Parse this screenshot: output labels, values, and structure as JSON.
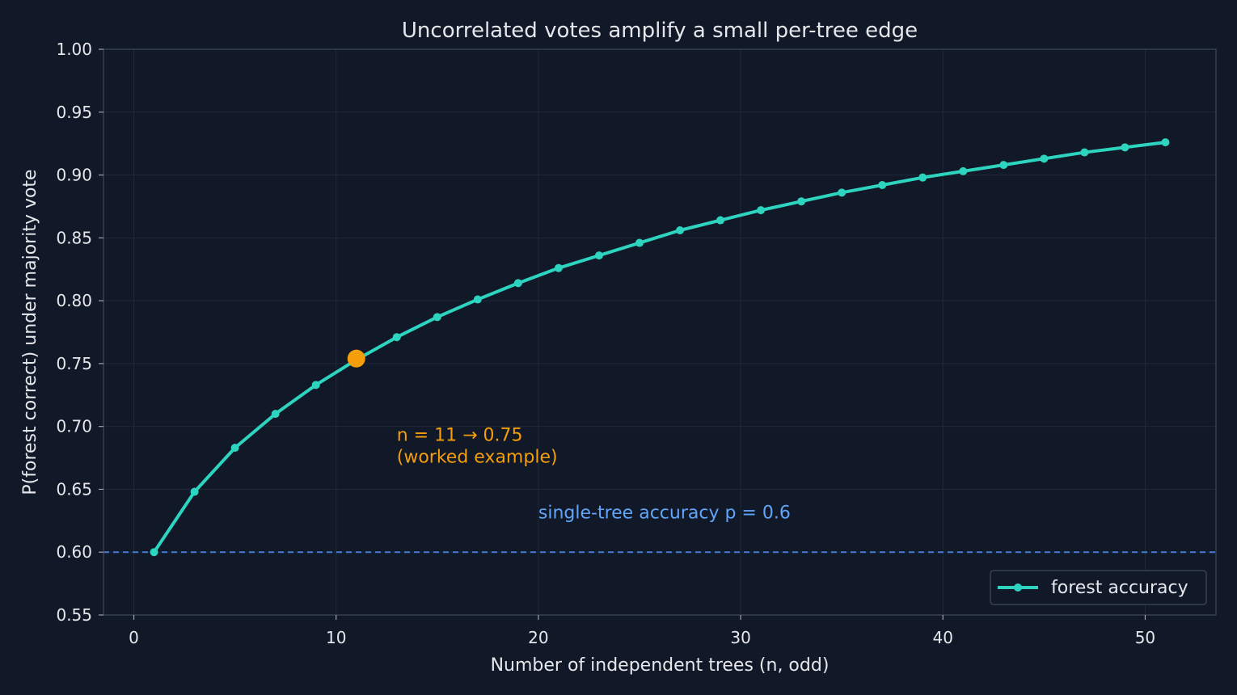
{
  "chart_data": {
    "type": "line",
    "title": "Uncorrelated votes amplify a small per-tree edge",
    "xlabel": "Number of independent trees  (n, odd)",
    "ylabel": "P(forest correct)  under majority vote",
    "xlim": [
      -1.5,
      53.5
    ],
    "ylim": [
      0.55,
      1.0
    ],
    "xticks": [
      0,
      10,
      20,
      30,
      40,
      50
    ],
    "yticks": [
      0.55,
      0.6,
      0.65,
      0.7,
      0.75,
      0.8,
      0.85,
      0.9,
      0.95,
      1.0
    ],
    "grid": true,
    "legend_position": "bottom-right",
    "series": [
      {
        "name": "forest accuracy",
        "color": "#2dd4bf",
        "x": [
          1,
          3,
          5,
          7,
          9,
          11,
          13,
          15,
          17,
          19,
          21,
          23,
          25,
          27,
          29,
          31,
          33,
          35,
          37,
          39,
          41,
          43,
          45,
          47,
          49,
          51
        ],
        "y": [
          0.6,
          0.648,
          0.683,
          0.71,
          0.733,
          0.753,
          0.771,
          0.787,
          0.801,
          0.814,
          0.826,
          0.836,
          0.846,
          0.856,
          0.864,
          0.872,
          0.879,
          0.886,
          0.892,
          0.898,
          0.903,
          0.908,
          0.913,
          0.918,
          0.922,
          0.926
        ]
      }
    ],
    "reference_line": {
      "y": 0.6,
      "label": "single-tree accuracy p = 0.6",
      "label_x": 20,
      "label_y": 0.632,
      "color": "#4b7bd1",
      "label_color": "#60a5fa"
    },
    "highlight": {
      "x": 11,
      "y": 0.754,
      "color": "#f59e0b",
      "label_line1": "n = 11 → 0.75",
      "label_line2": "(worked example)",
      "label_x": 13,
      "label_y": 0.682
    }
  }
}
